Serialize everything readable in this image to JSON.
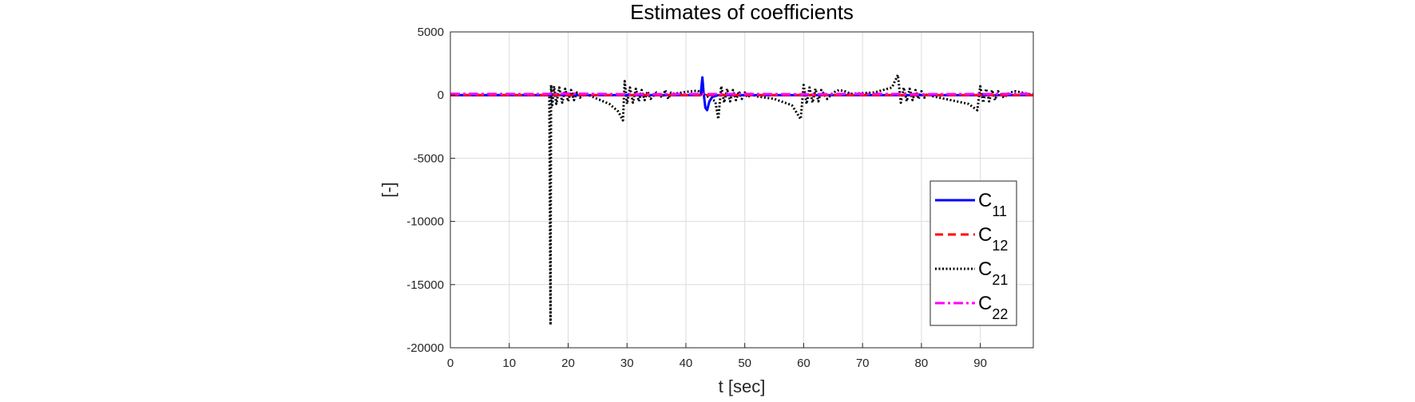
{
  "chart_data": {
    "type": "line",
    "title": "Estimates of coefficients",
    "xlabel": "t [sec]",
    "ylabel": "[-]",
    "xlim": [
      0,
      99
    ],
    "ylim": [
      -20000,
      5000
    ],
    "xticks": [
      0,
      10,
      20,
      30,
      40,
      50,
      60,
      70,
      80,
      90
    ],
    "yticks": [
      5000,
      0,
      -5000,
      -10000,
      -15000,
      -20000
    ],
    "grid": true,
    "legend_position": "lower-right",
    "series": [
      {
        "name": "C11",
        "label_main": "C",
        "label_sub": "11",
        "color": "#0000ff",
        "style": "solid",
        "x": [
          0,
          42.5,
          42.8,
          43.0,
          43.3,
          43.6,
          44.0,
          44.5,
          45.5,
          99
        ],
        "y": [
          0,
          0,
          1400,
          200,
          -1000,
          -1200,
          -500,
          -150,
          0,
          0
        ]
      },
      {
        "name": "C12",
        "label_main": "C",
        "label_sub": "12",
        "color": "#ff0000",
        "style": "dashed",
        "x": [
          0,
          99
        ],
        "y": [
          0,
          0
        ]
      },
      {
        "name": "C21",
        "label_main": "C",
        "label_sub": "21",
        "color": "#000000",
        "style": "dotted",
        "x": [
          0,
          16.8,
          17.0,
          17.1,
          17.3,
          17.6,
          18.0,
          18.5,
          19.0,
          19.5,
          20.0,
          20.5,
          21.0,
          21.5,
          22.0,
          23.0,
          25.0,
          27.0,
          28.5,
          29.3,
          29.6,
          30.0,
          30.5,
          31.0,
          31.5,
          32.0,
          32.5,
          33.0,
          33.5,
          34.0,
          35.0,
          36.0,
          36.5,
          37.0,
          37.5,
          38.0,
          40.0,
          42.0,
          44.0,
          45.0,
          45.5,
          46.0,
          46.5,
          47.0,
          47.5,
          48.0,
          48.5,
          49.0,
          49.5,
          50.0,
          50.5,
          51.0,
          52.0,
          55.0,
          58.0,
          59.5,
          60.0,
          60.5,
          61.0,
          61.5,
          62.0,
          62.5,
          63.0,
          64.0,
          65.0,
          66.0,
          67.0,
          68.0,
          72.0,
          75.0,
          76.0,
          76.5,
          77.0,
          77.5,
          78.0,
          78.5,
          79.0,
          79.5,
          80.0,
          80.5,
          81.0,
          82.0,
          84.0,
          86.0,
          88.0,
          89.5,
          90.0,
          90.5,
          91.0,
          91.5,
          92.0,
          92.5,
          93.0,
          94.0,
          95.0,
          96.0,
          97.0,
          99.0
        ],
        "y": [
          0,
          0,
          -18200,
          800,
          -800,
          700,
          -700,
          600,
          -600,
          500,
          -500,
          400,
          -400,
          200,
          -200,
          100,
          -300,
          -700,
          -1300,
          -2000,
          1100,
          -700,
          600,
          -600,
          500,
          -500,
          400,
          -400,
          300,
          -300,
          200,
          -200,
          400,
          -300,
          200,
          100,
          250,
          350,
          -200,
          -500,
          -1900,
          700,
          -600,
          500,
          -500,
          400,
          -400,
          300,
          -300,
          200,
          -200,
          100,
          -100,
          -300,
          -800,
          -1900,
          800,
          -700,
          600,
          -600,
          500,
          -500,
          400,
          -300,
          200,
          400,
          300,
          100,
          200,
          600,
          1600,
          -600,
          600,
          -500,
          500,
          -400,
          400,
          -300,
          300,
          -200,
          100,
          -100,
          -300,
          -500,
          -700,
          -1200,
          700,
          -600,
          500,
          -500,
          400,
          -400,
          300,
          -200,
          200,
          300,
          200,
          0
        ]
      },
      {
        "name": "C22",
        "label_main": "C",
        "label_sub": "22",
        "color": "#ff00ff",
        "style": "dashdot",
        "x": [
          0,
          15,
          20,
          30,
          40,
          50,
          60,
          70,
          80,
          90,
          99
        ],
        "y": [
          100,
          80,
          120,
          60,
          80,
          90,
          60,
          100,
          70,
          80,
          100
        ]
      }
    ]
  }
}
